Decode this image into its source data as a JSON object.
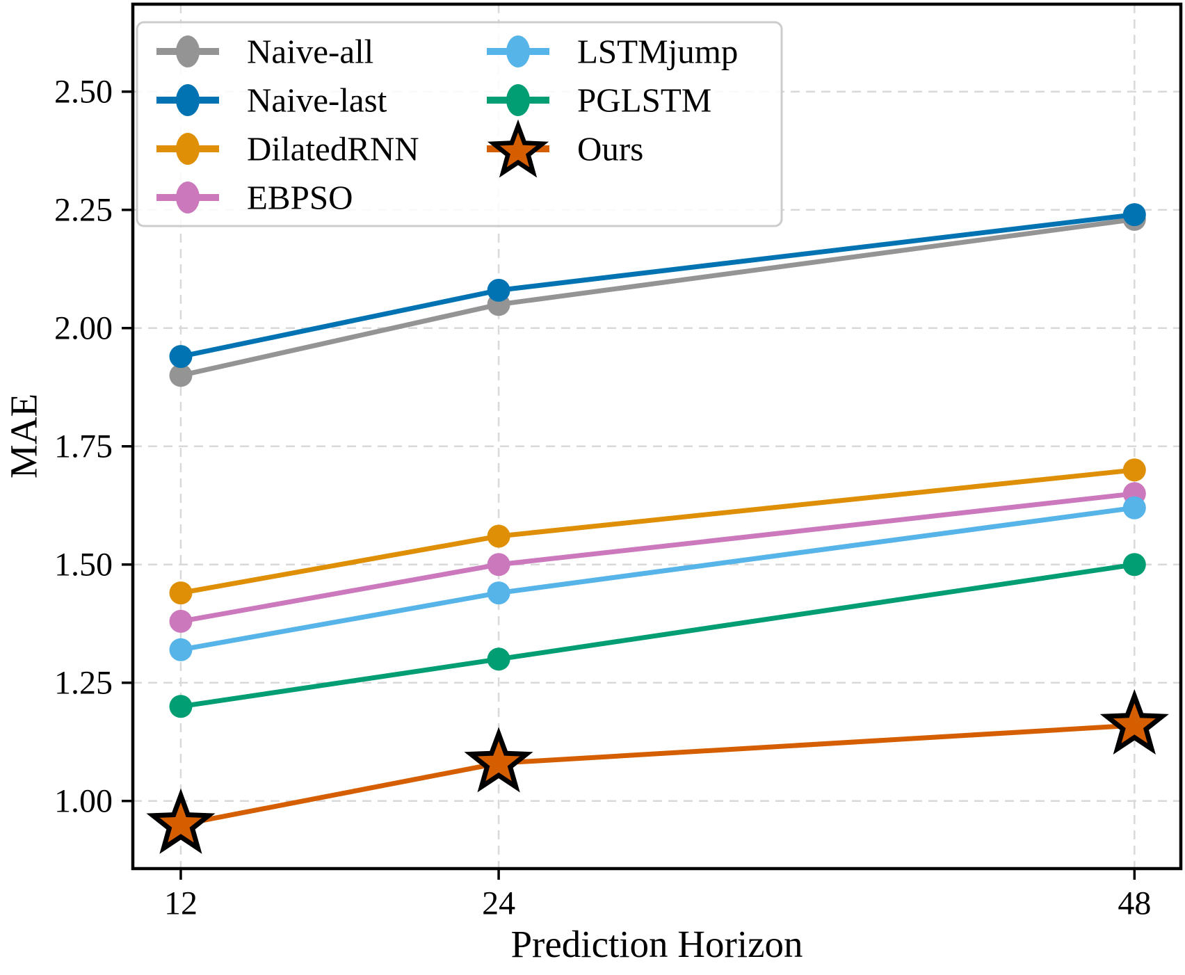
{
  "figure": {
    "xlabel": "Prediction Horizon",
    "ylabel": "MAE"
  },
  "chart_data": {
    "type": "line",
    "title": "",
    "xlabel": "Prediction Horizon",
    "ylabel": "MAE",
    "x": [
      12,
      24,
      48
    ],
    "x_tick_labels": [
      "12",
      "24",
      "48"
    ],
    "y_ticks": [
      1.0,
      1.25,
      1.5,
      1.75,
      2.0,
      2.25,
      2.5
    ],
    "y_tick_labels": [
      "1.00",
      "1.25",
      "1.50",
      "1.75",
      "2.00",
      "2.25",
      "2.50"
    ],
    "xlim": [
      10.19,
      49.75
    ],
    "ylim": [
      0.857,
      2.685
    ],
    "grid": "dashed-both-axes",
    "legend_position": "upper-left",
    "legend_columns": 2,
    "legend_column_items": [
      4,
      3
    ],
    "series": [
      {
        "name": "Naive-all",
        "color": "#949494",
        "marker": "circle",
        "values": [
          1.9,
          2.05,
          2.23
        ]
      },
      {
        "name": "Naive-last",
        "color": "#0173b2",
        "marker": "circle",
        "values": [
          1.94,
          2.08,
          2.24
        ]
      },
      {
        "name": "DilatedRNN",
        "color": "#de8f05",
        "marker": "circle",
        "values": [
          1.44,
          1.56,
          1.7
        ]
      },
      {
        "name": "EBPSO",
        "color": "#cc78bc",
        "marker": "circle",
        "values": [
          1.38,
          1.5,
          1.65
        ]
      },
      {
        "name": "LSTMjump",
        "color": "#56b4e9",
        "marker": "circle",
        "values": [
          1.32,
          1.44,
          1.62
        ]
      },
      {
        "name": "PGLSTM",
        "color": "#029e73",
        "marker": "circle",
        "values": [
          1.2,
          1.3,
          1.5
        ]
      },
      {
        "name": "Ours",
        "color": "#d55e00",
        "marker": "star",
        "marker_edge_color": "#000000",
        "values": [
          0.95,
          1.08,
          1.16
        ]
      }
    ],
    "colors": {
      "background": "#ffffff",
      "grid": "#d9d9d9",
      "spine": "#000000",
      "text": "#000000",
      "legend_border": "#cccccc",
      "legend_fill": "#ffffff"
    }
  }
}
